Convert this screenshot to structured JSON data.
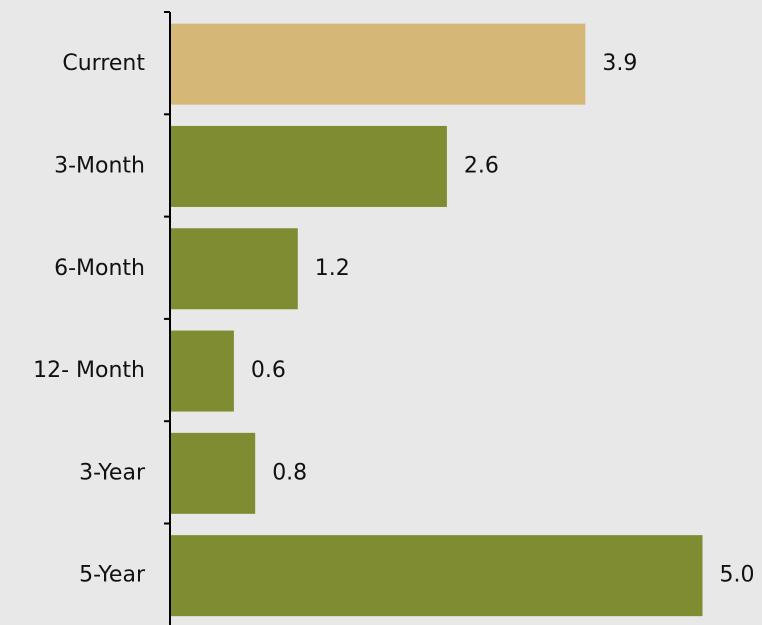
{
  "chart_data": {
    "type": "bar",
    "orientation": "horizontal",
    "categories": [
      "Current",
      "3-Month",
      "6-Month",
      "12- Month",
      "3-Year",
      "5-Year"
    ],
    "values": [
      3.9,
      2.6,
      1.2,
      0.6,
      0.8,
      5.0
    ],
    "value_labels": [
      "3.9",
      "2.6",
      "1.2",
      "0.6",
      "0.8",
      "5.0"
    ],
    "colors": [
      "#d5b878",
      "#7f8c31",
      "#7f8c31",
      "#7f8c31",
      "#7f8c31",
      "#7f8c31"
    ]
  }
}
